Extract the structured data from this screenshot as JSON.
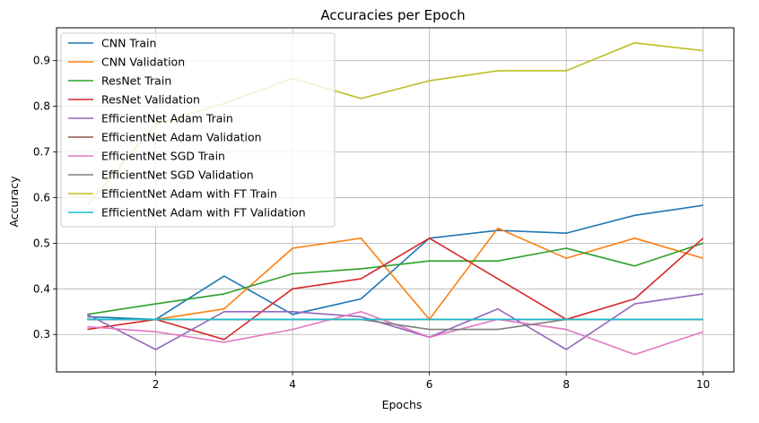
{
  "chart_data": {
    "type": "line",
    "title": "Accuracies per Epoch",
    "xlabel": "Epochs",
    "ylabel": "Accuracy",
    "xlim": [
      0.55,
      10.45
    ],
    "ylim": [
      0.218,
      0.972
    ],
    "xticks": [
      2,
      4,
      6,
      8,
      10
    ],
    "yticks": [
      0.3,
      0.4,
      0.5,
      0.6,
      0.7,
      0.8,
      0.9
    ],
    "grid": true,
    "legend_position": "upper-left",
    "x": [
      1,
      2,
      3,
      4,
      5,
      6,
      7,
      8,
      9,
      10
    ],
    "series": [
      {
        "name": "CNN Train",
        "color": "#1f77b4",
        "values": [
          0.339,
          0.333,
          0.428,
          0.344,
          0.378,
          0.511,
          0.528,
          0.522,
          0.561,
          0.583
        ]
      },
      {
        "name": "CNN Validation",
        "color": "#ff7f0e",
        "values": [
          0.333,
          0.333,
          0.356,
          0.489,
          0.511,
          0.333,
          0.533,
          0.467,
          0.511,
          0.467
        ]
      },
      {
        "name": "ResNet Train",
        "color": "#2ca02c",
        "values": [
          0.344,
          0.367,
          0.389,
          0.433,
          0.444,
          0.461,
          0.461,
          0.489,
          0.45,
          0.5
        ]
      },
      {
        "name": "ResNet Validation",
        "color": "#d62728",
        "values": [
          0.311,
          0.333,
          0.289,
          0.4,
          0.422,
          0.511,
          0.422,
          0.333,
          0.378,
          0.511
        ]
      },
      {
        "name": "EfficientNet Adam Train",
        "color": "#9467bd",
        "values": [
          0.344,
          0.267,
          0.35,
          0.35,
          0.339,
          0.294,
          0.356,
          0.267,
          0.367,
          0.389
        ]
      },
      {
        "name": "EfficientNet Adam Validation",
        "color": "#8c564b",
        "values": [
          0.333,
          0.333,
          0.333,
          0.333,
          0.333,
          0.333,
          0.333,
          0.333,
          0.333,
          0.333
        ]
      },
      {
        "name": "EfficientNet SGD Train",
        "color": "#e377c2",
        "values": [
          0.317,
          0.306,
          0.283,
          0.311,
          0.35,
          0.294,
          0.333,
          0.311,
          0.256,
          0.306
        ]
      },
      {
        "name": "EfficientNet SGD Validation",
        "color": "#7f7f7f",
        "values": [
          0.333,
          0.333,
          0.333,
          0.333,
          0.333,
          0.311,
          0.311,
          0.333,
          0.333,
          0.333
        ]
      },
      {
        "name": "EfficientNet Adam with FT Train",
        "color": "#bcbd22",
        "values": [
          0.583,
          0.761,
          0.806,
          0.861,
          0.817,
          0.856,
          0.878,
          0.878,
          0.939,
          0.922
        ]
      },
      {
        "name": "EfficientNet Adam with FT Validation",
        "color": "#17becf",
        "values": [
          0.333,
          0.333,
          0.333,
          0.333,
          0.333,
          0.333,
          0.333,
          0.333,
          0.333,
          0.333
        ]
      }
    ]
  }
}
